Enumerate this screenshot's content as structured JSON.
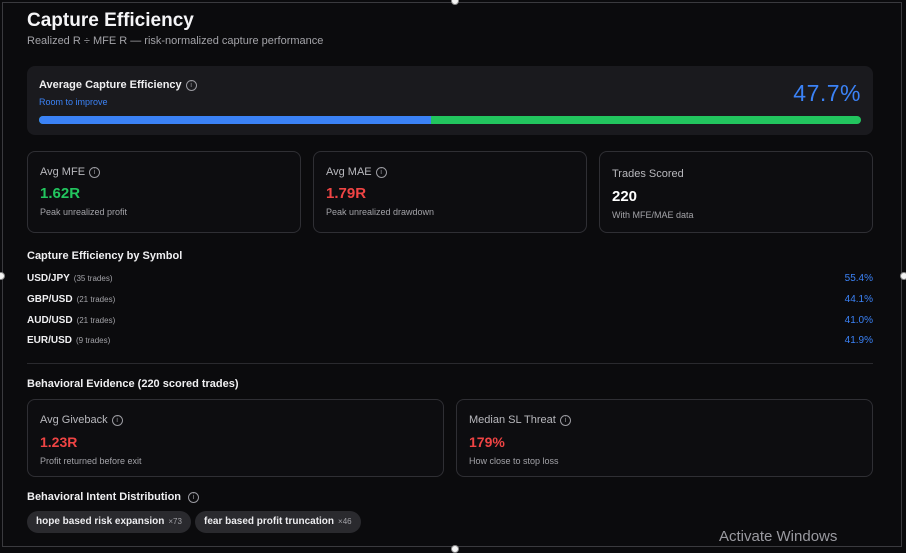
{
  "header": {
    "title": "Capture Efficiency",
    "subtitle": "Realized R ÷ MFE R — risk-normalized capture performance"
  },
  "average_capture": {
    "label": "Average Capture Efficiency",
    "status": "Room to improve",
    "value": "47.7%",
    "progress_fraction": 0.477,
    "info_icon": "info-icon"
  },
  "stats": [
    {
      "label": "Avg MFE",
      "value": "1.62R",
      "desc": "Peak unrealized profit",
      "color": "#22c55e"
    },
    {
      "label": "Avg MAE",
      "value": "1.79R",
      "desc": "Peak unrealized drawdown",
      "color": "#ef4444"
    },
    {
      "label": "Trades Scored",
      "value": "220",
      "desc": "With MFE/MAE data",
      "color": "#ffffff"
    }
  ],
  "by_symbol": {
    "title": "Capture Efficiency by Symbol",
    "rows": [
      {
        "symbol": "USD/JPY",
        "trades": "(35 trades)",
        "pct": "55.4%"
      },
      {
        "symbol": "GBP/USD",
        "trades": "(21 trades)",
        "pct": "44.1%"
      },
      {
        "symbol": "AUD/USD",
        "trades": "(21 trades)",
        "pct": "41.0%"
      },
      {
        "symbol": "EUR/USD",
        "trades": "(9 trades)",
        "pct": "41.9%"
      }
    ]
  },
  "behavioral_evidence": {
    "title": "Behavioral Evidence (220 scored trades)",
    "cards": [
      {
        "label": "Avg Giveback",
        "value": "1.23R",
        "desc": "Profit returned before exit"
      },
      {
        "label": "Median SL Threat",
        "value": "179%",
        "desc": "How close to stop loss"
      }
    ]
  },
  "intent_distribution": {
    "title": "Behavioral Intent Distribution",
    "chips": [
      {
        "label": "hope based risk expansion",
        "count": "×73"
      },
      {
        "label": "fear based profit truncation",
        "count": "×46"
      }
    ]
  },
  "watermark": "Activate Windows",
  "colors": {
    "accent": "#3b82f6",
    "positive": "#22c55e",
    "negative": "#ef4444"
  }
}
